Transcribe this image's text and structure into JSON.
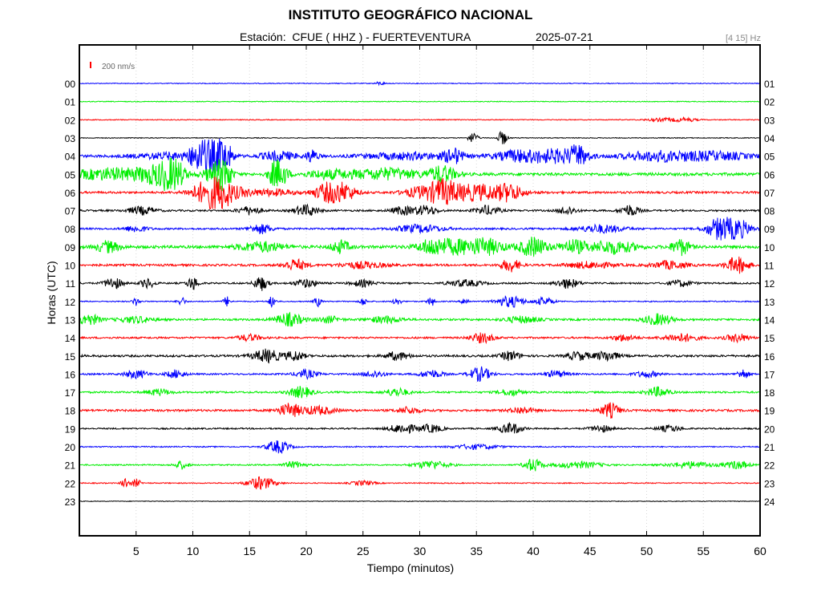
{
  "header": {
    "title": "INSTITUTO GEOGRÁFICO NACIONAL",
    "station_label": "Estación:  CFUE ( HHZ ) - FUERTEVENTURA",
    "date": "2025-07-21",
    "band": "[4 15] Hz"
  },
  "colors": {
    "blue": "#0000ff",
    "green": "#00ee00",
    "red": "#ff0000",
    "black": "#000000"
  },
  "chart_data": {
    "type": "line",
    "subtype": "helicorder",
    "title": "INSTITUTO GEOGRÁFICO NACIONAL",
    "subtitle": "Estación:  CFUE ( HHZ ) - FUERTEVENTURA",
    "xlabel": "Tiempo (minutos)",
    "ylabel": "Horas (UTC)",
    "xlim": [
      0,
      60
    ],
    "x_ticks": [
      5,
      10,
      15,
      20,
      25,
      30,
      35,
      40,
      45,
      50,
      55,
      60
    ],
    "scale_label": "200 nm/s",
    "band": "[4 15] Hz",
    "grid": "vertical dotted lines every 5 minutes",
    "color_cycle": [
      "blue",
      "green",
      "red",
      "black"
    ],
    "rows": [
      {
        "left": "00",
        "right": "01",
        "color": "blue",
        "noise": 0.5,
        "bursts": [
          [
            26.5,
            0.4,
            2
          ]
        ]
      },
      {
        "left": "01",
        "right": "02",
        "color": "green",
        "noise": 0.5,
        "bursts": []
      },
      {
        "left": "02",
        "right": "03",
        "color": "red",
        "noise": 0.5,
        "bursts": [
          [
            51.5,
            1.5,
            2
          ],
          [
            53.5,
            1,
            2
          ]
        ]
      },
      {
        "left": "03",
        "right": "04",
        "color": "black",
        "noise": 0.5,
        "bursts": [
          [
            34.7,
            0.4,
            7
          ],
          [
            37.3,
            0.4,
            9
          ]
        ]
      },
      {
        "left": "04",
        "right": "05",
        "color": "blue",
        "noise": 1.6,
        "bursts": [
          [
            8,
            3,
            4
          ],
          [
            10.5,
            0.8,
            9
          ],
          [
            11.3,
            1.2,
            16
          ],
          [
            12.6,
            0.8,
            22
          ],
          [
            17.5,
            1.5,
            6
          ],
          [
            20.5,
            0.5,
            8
          ],
          [
            29,
            4,
            4
          ],
          [
            33,
            0.8,
            9
          ],
          [
            38.5,
            2,
            6
          ],
          [
            42,
            2.5,
            8
          ],
          [
            44,
            0.8,
            10
          ],
          [
            51,
            3,
            6
          ],
          [
            56,
            3,
            5
          ]
        ]
      },
      {
        "left": "05",
        "right": "06",
        "color": "green",
        "noise": 1.8,
        "bursts": [
          [
            3,
            4,
            7
          ],
          [
            7,
            1.6,
            10
          ],
          [
            8.3,
            0.9,
            18
          ],
          [
            12,
            1,
            12
          ],
          [
            12.8,
            0.6,
            18
          ],
          [
            17.1,
            0.5,
            12
          ],
          [
            17.8,
            0.6,
            14
          ],
          [
            22,
            2,
            5
          ],
          [
            27,
            3,
            7
          ],
          [
            32,
            1.2,
            10
          ]
        ]
      },
      {
        "left": "06",
        "right": "07",
        "color": "red",
        "noise": 1.3,
        "bursts": [
          [
            11,
            1.3,
            12
          ],
          [
            12.4,
            1,
            20
          ],
          [
            14,
            1.2,
            5
          ],
          [
            17,
            2,
            4
          ],
          [
            22,
            1.3,
            12
          ],
          [
            23.5,
            1,
            8
          ],
          [
            30,
            1.5,
            6
          ],
          [
            32,
            1.2,
            12
          ],
          [
            35,
            3,
            10
          ],
          [
            38,
            1,
            8
          ]
        ]
      },
      {
        "left": "07",
        "right": "08",
        "color": "black",
        "noise": 1.1,
        "bursts": [
          [
            5.5,
            1.2,
            5
          ],
          [
            15,
            1,
            5
          ],
          [
            20,
            1,
            7
          ],
          [
            28.5,
            1,
            5
          ],
          [
            30.5,
            1,
            6
          ],
          [
            36,
            1,
            6
          ],
          [
            43,
            0.8,
            5
          ],
          [
            48.5,
            0.8,
            7
          ]
        ]
      },
      {
        "left": "08",
        "right": "09",
        "color": "blue",
        "noise": 1.1,
        "bursts": [
          [
            5,
            1,
            4
          ],
          [
            16,
            1,
            6
          ],
          [
            30,
            2,
            5
          ],
          [
            46,
            2,
            5
          ],
          [
            56.5,
            1.2,
            14
          ],
          [
            58.2,
            1,
            10
          ]
        ]
      },
      {
        "left": "09",
        "right": "10",
        "color": "green",
        "noise": 1.8,
        "bursts": [
          [
            2.5,
            1,
            7
          ],
          [
            16,
            2,
            6
          ],
          [
            23,
            0.8,
            8
          ],
          [
            31,
            1,
            6
          ],
          [
            33,
            2.5,
            9
          ],
          [
            36,
            1.5,
            8
          ],
          [
            40,
            1.2,
            12
          ],
          [
            43.5,
            1.2,
            8
          ],
          [
            47,
            2,
            8
          ],
          [
            53,
            0.8,
            10
          ]
        ]
      },
      {
        "left": "10",
        "right": "11",
        "color": "red",
        "noise": 1.3,
        "bursts": [
          [
            19,
            1,
            7
          ],
          [
            25,
            2,
            4
          ],
          [
            38,
            0.8,
            8
          ],
          [
            45,
            2,
            4
          ],
          [
            52,
            1.5,
            5
          ],
          [
            58,
            1,
            10
          ]
        ]
      },
      {
        "left": "11",
        "right": "12",
        "color": "black",
        "noise": 1.0,
        "bursts": [
          [
            3,
            0.8,
            7
          ],
          [
            6,
            0.6,
            6
          ],
          [
            10,
            0.5,
            8
          ],
          [
            16,
            0.6,
            9
          ],
          [
            20,
            1,
            5
          ],
          [
            25,
            1,
            4
          ],
          [
            34,
            1.5,
            4
          ],
          [
            43,
            1,
            6
          ],
          [
            53,
            1,
            4
          ]
        ]
      },
      {
        "left": "12",
        "right": "13",
        "color": "blue",
        "noise": 0.7,
        "bursts": [
          [
            5,
            0.3,
            5
          ],
          [
            9,
            0.3,
            6
          ],
          [
            13,
            0.3,
            6
          ],
          [
            17,
            0.3,
            7
          ],
          [
            21,
            0.3,
            6
          ],
          [
            25,
            0.3,
            5
          ],
          [
            28,
            0.3,
            6
          ],
          [
            31,
            0.3,
            6
          ],
          [
            34,
            0.3,
            5
          ],
          [
            38,
            1.2,
            7
          ],
          [
            41,
            0.8,
            5
          ]
        ]
      },
      {
        "left": "13",
        "right": "14",
        "color": "green",
        "noise": 1.2,
        "bursts": [
          [
            0.8,
            1,
            7
          ],
          [
            5,
            1.5,
            4
          ],
          [
            18.5,
            1.2,
            8
          ],
          [
            22,
            1,
            4
          ],
          [
            27,
            1.5,
            4
          ],
          [
            39,
            1.5,
            4
          ],
          [
            51,
            1.2,
            7
          ]
        ]
      },
      {
        "left": "14",
        "right": "15",
        "color": "red",
        "noise": 1.1,
        "bursts": [
          [
            15,
            1,
            4
          ],
          [
            35.5,
            1,
            6
          ],
          [
            48,
            1,
            4
          ],
          [
            53,
            1.5,
            5
          ],
          [
            58,
            1,
            5
          ]
        ]
      },
      {
        "left": "15",
        "right": "16",
        "color": "black",
        "noise": 1.3,
        "bursts": [
          [
            16.5,
            1.2,
            8
          ],
          [
            19,
            0.8,
            6
          ],
          [
            28,
            1,
            5
          ],
          [
            38,
            0.8,
            6
          ],
          [
            44,
            1,
            5
          ],
          [
            46.5,
            1,
            6
          ]
        ]
      },
      {
        "left": "16",
        "right": "17",
        "color": "blue",
        "noise": 1.0,
        "bursts": [
          [
            5,
            1,
            5
          ],
          [
            8.5,
            0.8,
            5
          ],
          [
            20,
            1,
            5
          ],
          [
            26,
            1,
            4
          ],
          [
            31,
            1,
            5
          ],
          [
            35.3,
            0.9,
            9
          ],
          [
            42,
            1,
            4
          ],
          [
            50,
            1,
            4
          ],
          [
            58.5,
            0.5,
            6
          ]
        ]
      },
      {
        "left": "17",
        "right": "18",
        "color": "green",
        "noise": 1.1,
        "bursts": [
          [
            7,
            1,
            4
          ],
          [
            19.5,
            1,
            7
          ],
          [
            28,
            1,
            5
          ],
          [
            38,
            1,
            4
          ],
          [
            51,
            1,
            6
          ]
        ]
      },
      {
        "left": "18",
        "right": "19",
        "color": "red",
        "noise": 1.3,
        "bursts": [
          [
            18.5,
            1,
            8
          ],
          [
            21,
            1.5,
            5
          ],
          [
            29,
            1,
            4
          ],
          [
            39,
            1,
            4
          ],
          [
            46.8,
            0.8,
            9
          ]
        ]
      },
      {
        "left": "19",
        "right": "20",
        "color": "black",
        "noise": 0.9,
        "bursts": [
          [
            28.5,
            1.2,
            6
          ],
          [
            31,
            1,
            5
          ],
          [
            38,
            1,
            7
          ],
          [
            46,
            1,
            4
          ],
          [
            52,
            1,
            4
          ]
        ]
      },
      {
        "left": "20",
        "right": "21",
        "color": "blue",
        "noise": 0.7,
        "bursts": [
          [
            17.5,
            1,
            8
          ],
          [
            35,
            2,
            3
          ]
        ]
      },
      {
        "left": "21",
        "right": "22",
        "color": "green",
        "noise": 0.8,
        "bursts": [
          [
            9,
            0.6,
            5
          ],
          [
            19,
            1,
            4
          ],
          [
            31,
            1.5,
            5
          ],
          [
            40,
            0.8,
            8
          ],
          [
            44,
            2,
            4
          ],
          [
            54,
            2,
            4
          ],
          [
            58,
            1,
            5
          ]
        ]
      },
      {
        "left": "22",
        "right": "23",
        "color": "red",
        "noise": 0.6,
        "bursts": [
          [
            4,
            0.3,
            7
          ],
          [
            5,
            0.4,
            5
          ],
          [
            16,
            1.2,
            8
          ],
          [
            25,
            1,
            3
          ]
        ]
      },
      {
        "left": "23",
        "right": "24",
        "color": "black",
        "noise": 0.4,
        "bursts": []
      }
    ]
  }
}
